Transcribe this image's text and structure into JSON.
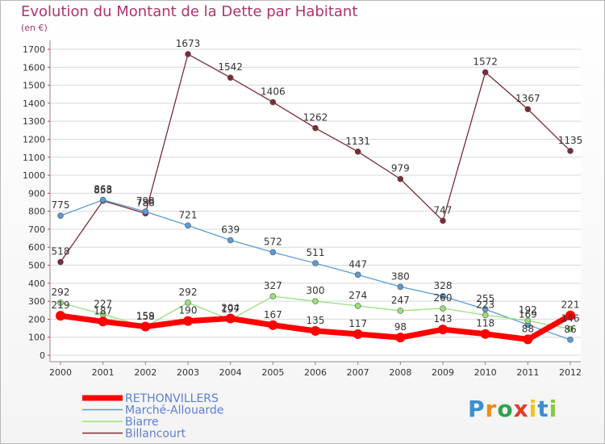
{
  "chart_data": {
    "type": "line",
    "title": "Evolution du Montant de la Dette par Habitant",
    "subtitle": "(en €)",
    "x": [
      "2000",
      "2001",
      "2002",
      "2003",
      "2004",
      "2005",
      "2006",
      "2007",
      "2008",
      "2009",
      "2010",
      "2011",
      "2012"
    ],
    "y_ticks": [
      "0",
      "100",
      "200",
      "300",
      "400",
      "500",
      "600",
      "700",
      "800",
      "900",
      "1000",
      "1100",
      "1200",
      "1300",
      "1400",
      "1500",
      "1600",
      "1700"
    ],
    "ylim": [
      0,
      1700
    ],
    "grid": "horizontal",
    "legend_placement": "bottom-left",
    "series": [
      {
        "name": "RETHONVILLERS",
        "color": "#ff0000",
        "values": [
          219,
          187,
          159,
          190,
          204,
          167,
          135,
          117,
          98,
          143,
          118,
          88,
          221
        ],
        "labels": [
          "219",
          "187",
          "159",
          "190",
          "204",
          "167",
          "135",
          "117",
          "98",
          "143",
          "118",
          "88",
          "221"
        ]
      },
      {
        "name": "Marché-Allouarde",
        "color": "#5b9bd5",
        "values": [
          775,
          863,
          798,
          721,
          639,
          572,
          511,
          447,
          380,
          328,
          255,
          169,
          86
        ],
        "labels": [
          "775",
          "863",
          "798",
          "721",
          "639",
          "572",
          "511",
          "447",
          "380",
          "328",
          "255",
          "169",
          "86"
        ]
      },
      {
        "name": "Biarre",
        "color": "#99e07a",
        "values": [
          292,
          227,
          158,
          292,
          197,
          327,
          300,
          274,
          247,
          260,
          223,
          192,
          146
        ],
        "labels": [
          "292",
          "227",
          "158",
          "292",
          "197",
          "327",
          "300",
          "274",
          "247",
          "260",
          "223",
          "192",
          "146"
        ]
      },
      {
        "name": "Billancourt",
        "color": "#7b2b35",
        "values": [
          518,
          858,
          788,
          1673,
          1542,
          1406,
          1262,
          1131,
          979,
          747,
          1572,
          1367,
          1135
        ],
        "labels": [
          "518",
          "858",
          "788",
          "1673",
          "1542",
          "1406",
          "1262",
          "1131",
          "979",
          "747",
          "1572",
          "1367",
          "1135"
        ]
      }
    ]
  },
  "logo": {
    "letters": [
      "P",
      "r",
      "o",
      "x",
      "i",
      "t",
      "i"
    ],
    "colors": [
      "#3a8fd0",
      "#f08a1c",
      "#2ea34a",
      "#e23b2a",
      "#f0c419",
      "#3a8fd0",
      "#8cc63f"
    ]
  }
}
